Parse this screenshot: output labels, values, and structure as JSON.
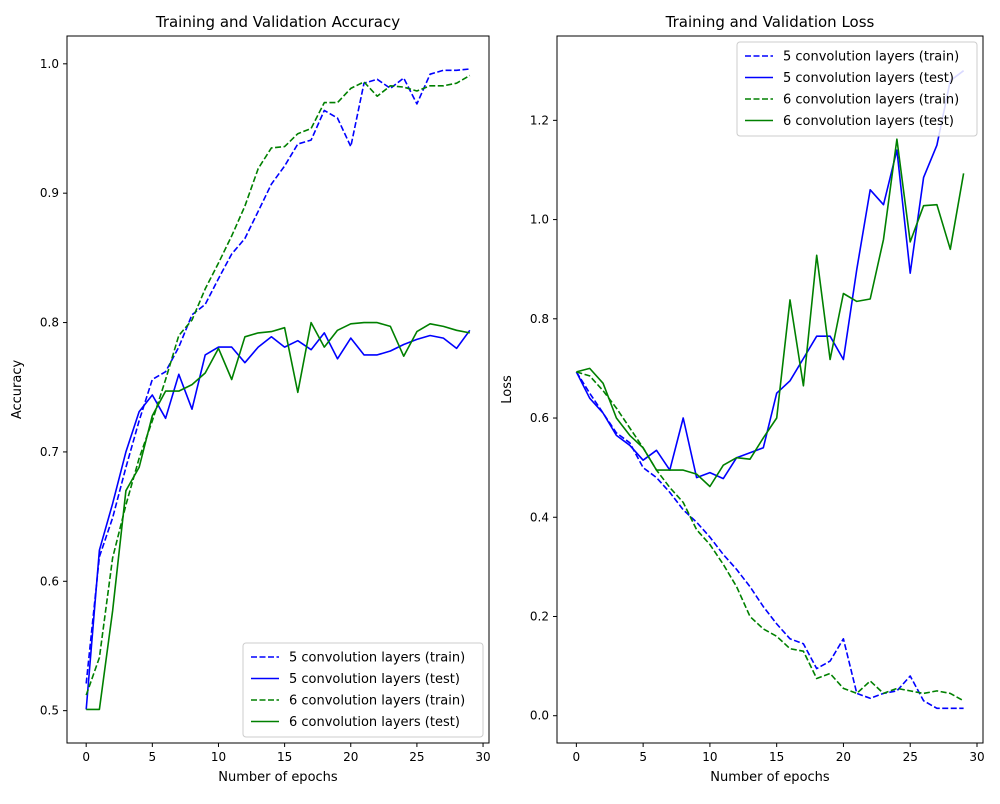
{
  "chart_data": [
    {
      "type": "line",
      "title": "Training and Validation Accuracy",
      "xlabel": "Number of epochs",
      "ylabel": "Accuracy",
      "xlim": [
        -1.45,
        30.45
      ],
      "ylim": [
        0.475,
        1.0215
      ],
      "xticks": [
        0,
        5,
        10,
        15,
        20,
        25,
        30
      ],
      "yticks": [
        0.5,
        0.6,
        0.7,
        0.8,
        0.9,
        1.0
      ],
      "ytick_labels": [
        "0.5",
        "0.6",
        "0.7",
        "0.8",
        "0.9",
        "1.0"
      ],
      "grid": false,
      "legend": "lower-right",
      "x": [
        0,
        1,
        2,
        3,
        4,
        5,
        6,
        7,
        8,
        9,
        10,
        11,
        12,
        13,
        14,
        15,
        16,
        17,
        18,
        19,
        20,
        21,
        22,
        23,
        24,
        25,
        26,
        27,
        28,
        29
      ],
      "series": [
        {
          "name": "5 convolution layers (train)",
          "color": "#0000ff",
          "style": "dashed",
          "values": [
            0.521,
            0.619,
            0.649,
            0.688,
            0.724,
            0.756,
            0.762,
            0.781,
            0.806,
            0.814,
            0.834,
            0.853,
            0.865,
            0.886,
            0.907,
            0.921,
            0.938,
            0.941,
            0.964,
            0.958,
            0.936,
            0.985,
            0.988,
            0.981,
            0.989,
            0.969,
            0.992,
            0.995,
            0.995,
            0.996
          ]
        },
        {
          "name": "5 convolution layers (test)",
          "color": "#0000ff",
          "style": "solid",
          "values": [
            0.501,
            0.624,
            0.66,
            0.7,
            0.731,
            0.744,
            0.726,
            0.76,
            0.733,
            0.775,
            0.781,
            0.781,
            0.769,
            0.781,
            0.789,
            0.781,
            0.786,
            0.779,
            0.792,
            0.772,
            0.788,
            0.775,
            0.775,
            0.778,
            0.783,
            0.787,
            0.79,
            0.788,
            0.78,
            0.794
          ]
        },
        {
          "name": "6 convolution layers (train)",
          "color": "#008000",
          "style": "dashed",
          "values": [
            0.512,
            0.541,
            0.618,
            0.659,
            0.695,
            0.724,
            0.756,
            0.79,
            0.802,
            0.826,
            0.846,
            0.867,
            0.89,
            0.919,
            0.935,
            0.936,
            0.946,
            0.95,
            0.97,
            0.97,
            0.981,
            0.986,
            0.975,
            0.983,
            0.982,
            0.979,
            0.983,
            0.983,
            0.985,
            0.991
          ]
        },
        {
          "name": "6 convolution layers (test)",
          "color": "#008000",
          "style": "solid",
          "values": [
            0.501,
            0.501,
            0.577,
            0.67,
            0.688,
            0.728,
            0.747,
            0.747,
            0.752,
            0.761,
            0.78,
            0.756,
            0.789,
            0.792,
            0.793,
            0.796,
            0.746,
            0.8,
            0.781,
            0.794,
            0.799,
            0.8,
            0.8,
            0.797,
            0.774,
            0.793,
            0.799,
            0.797,
            0.794,
            0.792
          ]
        }
      ]
    },
    {
      "type": "line",
      "title": "Training and Validation Loss",
      "xlabel": "Number of epochs",
      "ylabel": "Loss",
      "xlim": [
        -1.45,
        30.45
      ],
      "ylim": [
        -0.055,
        1.37
      ],
      "xticks": [
        0,
        5,
        10,
        15,
        20,
        25,
        30
      ],
      "yticks": [
        0.0,
        0.2,
        0.4,
        0.6,
        0.8,
        1.0,
        1.2
      ],
      "ytick_labels": [
        "0.0",
        "0.2",
        "0.4",
        "0.6",
        "0.8",
        "1.0",
        "1.2"
      ],
      "grid": false,
      "legend": "upper-right",
      "x": [
        0,
        1,
        2,
        3,
        4,
        5,
        6,
        7,
        8,
        9,
        10,
        11,
        12,
        13,
        14,
        15,
        16,
        17,
        18,
        19,
        20,
        21,
        22,
        23,
        24,
        25,
        26,
        27,
        28,
        29
      ],
      "series": [
        {
          "name": "5 convolution layers (train)",
          "color": "#0000ff",
          "style": "dashed",
          "values": [
            0.693,
            0.65,
            0.61,
            0.57,
            0.55,
            0.5,
            0.48,
            0.45,
            0.415,
            0.39,
            0.36,
            0.325,
            0.295,
            0.26,
            0.22,
            0.185,
            0.155,
            0.145,
            0.095,
            0.11,
            0.155,
            0.045,
            0.035,
            0.045,
            0.05,
            0.08,
            0.03,
            0.015,
            0.015,
            0.015
          ]
        },
        {
          "name": "5 convolution layers (test)",
          "color": "#0000ff",
          "style": "solid",
          "values": [
            0.693,
            0.64,
            0.61,
            0.565,
            0.545,
            0.515,
            0.535,
            0.495,
            0.6,
            0.48,
            0.49,
            0.478,
            0.52,
            0.53,
            0.54,
            0.65,
            0.675,
            0.72,
            0.765,
            0.765,
            0.718,
            0.9,
            1.06,
            1.03,
            1.14,
            0.892,
            1.085,
            1.15,
            1.28,
            1.3
          ]
        },
        {
          "name": "6 convolution layers (train)",
          "color": "#008000",
          "style": "dashed",
          "values": [
            0.693,
            0.685,
            0.655,
            0.62,
            0.58,
            0.54,
            0.495,
            0.46,
            0.43,
            0.375,
            0.345,
            0.305,
            0.26,
            0.2,
            0.175,
            0.16,
            0.135,
            0.13,
            0.075,
            0.085,
            0.055,
            0.045,
            0.07,
            0.045,
            0.055,
            0.05,
            0.045,
            0.05,
            0.045,
            0.03
          ]
        },
        {
          "name": "6 convolution layers (test)",
          "color": "#008000",
          "style": "solid",
          "values": [
            0.693,
            0.7,
            0.67,
            0.6,
            0.565,
            0.54,
            0.495,
            0.495,
            0.495,
            0.487,
            0.462,
            0.505,
            0.52,
            0.517,
            0.56,
            0.6,
            0.838,
            0.665,
            0.928,
            0.718,
            0.851,
            0.835,
            0.84,
            0.96,
            1.162,
            0.955,
            1.028,
            1.03,
            0.94,
            1.093
          ]
        }
      ]
    }
  ]
}
